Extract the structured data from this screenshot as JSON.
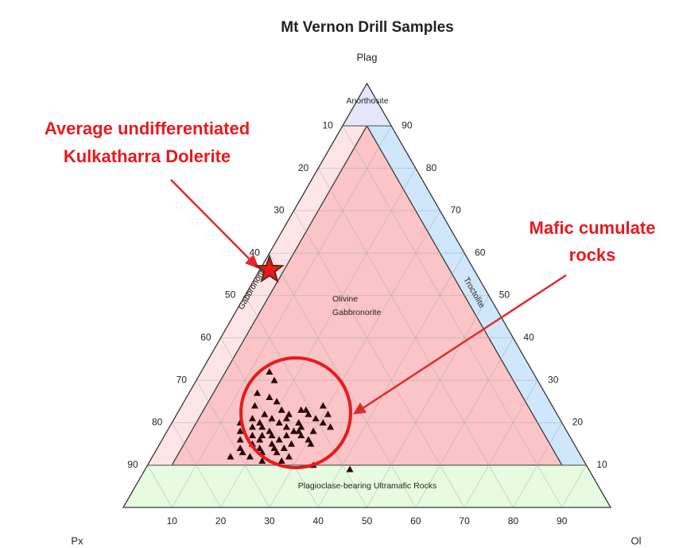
{
  "chart_data": {
    "type": "ternary",
    "title": "Mt Vernon Drill Samples",
    "apex_labels": {
      "top": "Plag",
      "left": "Px",
      "right": "Ol"
    },
    "ol_ticks": [
      10,
      20,
      30,
      40,
      50,
      60,
      70,
      80,
      90
    ],
    "plag_ticks": [
      10,
      20,
      30,
      40,
      50,
      60,
      70,
      80,
      90
    ],
    "px_ticks": [
      10,
      20,
      30,
      40,
      50,
      60,
      70,
      80,
      90
    ],
    "grid": true,
    "regions": {
      "anorthosite": "Anorthosite",
      "gabbronorite": "Gabbronorite",
      "troctolite": "Troctolite",
      "olivine_gabbronorite": [
        "Olivine",
        "Gabbronorite"
      ],
      "ultramafic": "Plagioclase-bearing Ultramafic Rocks"
    },
    "points": {
      "color": "#2a0808",
      "plag": [
        32,
        30,
        27,
        26,
        25,
        24,
        23,
        23,
        22,
        22,
        22,
        21,
        21,
        21,
        20,
        20,
        20,
        20,
        19,
        19,
        19,
        19,
        18,
        18,
        18,
        18,
        17,
        17,
        17,
        17,
        16,
        16,
        16,
        15,
        15,
        15,
        14,
        14,
        14,
        13,
        13,
        13,
        12,
        12,
        11,
        11,
        10,
        9,
        24,
        22,
        20,
        18,
        16,
        14,
        21,
        19,
        17,
        15,
        23,
        12
      ],
      "ol": [
        14,
        16,
        14,
        17,
        19,
        15,
        21,
        25,
        18,
        23,
        27,
        16,
        20,
        29,
        14,
        22,
        26,
        31,
        17,
        19,
        24,
        33,
        15,
        21,
        27,
        30,
        18,
        22,
        25,
        28,
        16,
        20,
        24,
        19,
        23,
        27,
        17,
        21,
        26,
        18,
        22,
        25,
        20,
        28,
        23,
        27,
        34,
        42,
        29,
        31,
        18,
        26,
        30,
        24,
        23,
        27,
        20,
        31,
        26,
        16
      ]
    },
    "highlight": {
      "plag": 56,
      "ol": 2,
      "label": [
        "Average undifferentiated",
        "Kulkatharra Dolerite"
      ]
    },
    "cluster_label": [
      "Mafic cumulate",
      "rocks"
    ]
  }
}
